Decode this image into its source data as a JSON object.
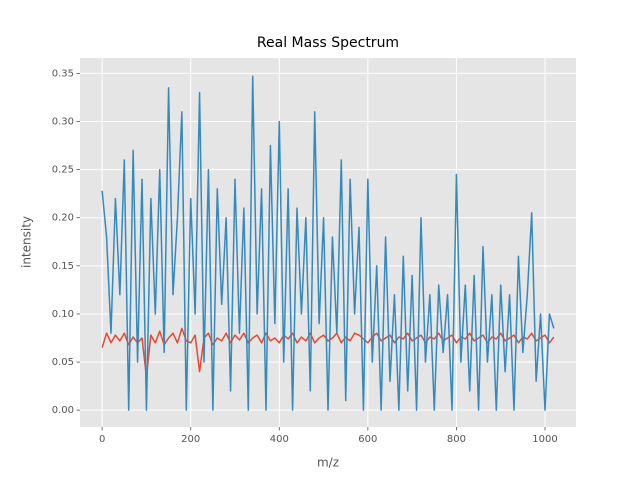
{
  "chart_data": {
    "type": "line",
    "title": "Real Mass Spectrum",
    "xlabel": "m/z",
    "ylabel": "intensity",
    "x": [
      0,
      10,
      20,
      30,
      40,
      50,
      60,
      70,
      80,
      90,
      100,
      110,
      120,
      130,
      140,
      150,
      160,
      170,
      180,
      190,
      200,
      210,
      220,
      230,
      240,
      250,
      260,
      270,
      280,
      290,
      300,
      310,
      320,
      330,
      340,
      350,
      360,
      370,
      380,
      390,
      400,
      410,
      420,
      430,
      440,
      450,
      460,
      470,
      480,
      490,
      500,
      510,
      520,
      530,
      540,
      550,
      560,
      570,
      580,
      590,
      600,
      610,
      620,
      630,
      640,
      650,
      660,
      670,
      680,
      690,
      700,
      710,
      720,
      730,
      740,
      750,
      760,
      770,
      780,
      790,
      800,
      810,
      820,
      830,
      840,
      850,
      860,
      870,
      880,
      890,
      900,
      910,
      920,
      930,
      940,
      950,
      960,
      970,
      980,
      990,
      1000,
      1010,
      1020
    ],
    "series": [
      {
        "color": "#E24A33",
        "values": [
          0.065,
          0.08,
          0.07,
          0.078,
          0.072,
          0.08,
          0.068,
          0.076,
          0.07,
          0.075,
          0.035,
          0.078,
          0.07,
          0.082,
          0.068,
          0.075,
          0.08,
          0.07,
          0.085,
          0.072,
          0.07,
          0.078,
          0.04,
          0.075,
          0.08,
          0.068,
          0.075,
          0.072,
          0.08,
          0.07,
          0.078,
          0.073,
          0.08,
          0.07,
          0.075,
          0.078,
          0.07,
          0.08,
          0.072,
          0.075,
          0.07,
          0.078,
          0.074,
          0.08,
          0.07,
          0.076,
          0.072,
          0.08,
          0.07,
          0.075,
          0.078,
          0.072,
          0.075,
          0.08,
          0.07,
          0.076,
          0.072,
          0.08,
          0.078,
          0.074,
          0.07,
          0.076,
          0.08,
          0.072,
          0.075,
          0.078,
          0.07,
          0.076,
          0.074,
          0.08,
          0.072,
          0.075,
          0.078,
          0.07,
          0.076,
          0.074,
          0.08,
          0.072,
          0.075,
          0.078,
          0.07,
          0.076,
          0.074,
          0.08,
          0.072,
          0.075,
          0.078,
          0.07,
          0.076,
          0.074,
          0.08,
          0.072,
          0.075,
          0.078,
          0.07,
          0.076,
          0.074,
          0.08,
          0.072,
          0.075,
          0.078,
          0.07,
          0.076
        ]
      },
      {
        "color": "#348ABD",
        "values": [
          0.228,
          0.18,
          0.08,
          0.22,
          0.12,
          0.26,
          0.0,
          0.27,
          0.05,
          0.24,
          0.0,
          0.22,
          0.1,
          0.25,
          0.06,
          0.335,
          0.12,
          0.2,
          0.31,
          0.0,
          0.22,
          0.1,
          0.33,
          0.05,
          0.25,
          0.0,
          0.23,
          0.11,
          0.2,
          0.02,
          0.24,
          0.08,
          0.21,
          0.0,
          0.347,
          0.1,
          0.23,
          0.0,
          0.275,
          0.09,
          0.3,
          0.05,
          0.23,
          0.0,
          0.21,
          0.1,
          0.2,
          0.02,
          0.31,
          0.09,
          0.2,
          0.0,
          0.18,
          0.08,
          0.26,
          0.01,
          0.24,
          0.1,
          0.19,
          0.0,
          0.24,
          0.05,
          0.15,
          0.0,
          0.18,
          0.03,
          0.12,
          0.0,
          0.16,
          0.02,
          0.14,
          0.0,
          0.2,
          0.05,
          0.12,
          0.0,
          0.13,
          0.06,
          0.12,
          0.0,
          0.245,
          0.05,
          0.13,
          0.02,
          0.14,
          0.0,
          0.17,
          0.05,
          0.12,
          0.0,
          0.13,
          0.04,
          0.12,
          0.0,
          0.16,
          0.06,
          0.12,
          0.205,
          0.03,
          0.1,
          0.0,
          0.1,
          0.085
        ]
      }
    ],
    "xlim": [
      -50,
      1070
    ],
    "ylim": [
      -0.0175,
      0.366
    ],
    "xticks": [
      0,
      200,
      400,
      600,
      800,
      1000
    ],
    "yticks": [
      {
        "value": 0,
        "label": "0.00"
      },
      {
        "value": 0.05,
        "label": "0.05"
      },
      {
        "value": 0.1,
        "label": "0.10"
      },
      {
        "value": 0.15,
        "label": "0.15"
      },
      {
        "value": 0.2,
        "label": "0.20"
      },
      {
        "value": 0.25,
        "label": "0.25"
      },
      {
        "value": 0.3,
        "label": "0.30"
      },
      {
        "value": 0.35,
        "label": "0.35"
      }
    ],
    "grid": true
  }
}
